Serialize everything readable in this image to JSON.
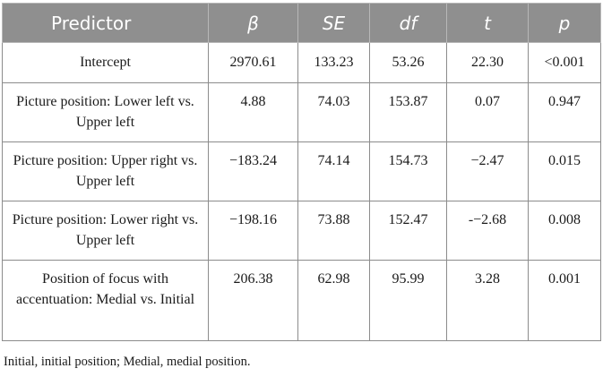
{
  "table": {
    "headers": [
      "Predictor",
      "β",
      "SE",
      "df",
      "t",
      "p"
    ],
    "rows": [
      {
        "label": "Intercept",
        "beta": "2970.61",
        "se": "133.23",
        "df": "53.26",
        "t": "22.30",
        "p": "<0.001"
      },
      {
        "label": "Picture position: Lower left vs. Upper left",
        "beta": "4.88",
        "se": "74.03",
        "df": "153.87",
        "t": "0.07",
        "p": "0.947"
      },
      {
        "label": "Picture position: Upper right vs. Upper left",
        "beta": "−183.24",
        "se": "74.14",
        "df": "154.73",
        "t": "−2.47",
        "p": "0.015"
      },
      {
        "label": "Picture position: Lower right vs. Upper left",
        "beta": "−198.16",
        "se": "73.88",
        "df": "152.47",
        "t": "-−2.68",
        "p": "0.008"
      },
      {
        "label": "Position of focus with accentuation: Medial vs. Initial",
        "beta": "206.38",
        "se": "62.98",
        "df": "95.99",
        "t": "3.28",
        "p": "0.001"
      }
    ]
  },
  "note": "Initial, initial position; Medial, medial position."
}
